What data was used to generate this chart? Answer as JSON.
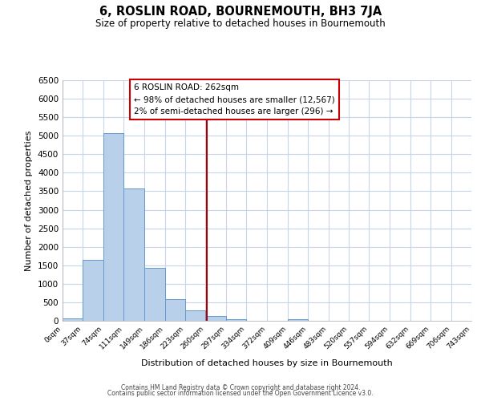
{
  "title": "6, ROSLIN ROAD, BOURNEMOUTH, BH3 7JA",
  "subtitle": "Size of property relative to detached houses in Bournemouth",
  "xlabel": "Distribution of detached houses by size in Bournemouth",
  "ylabel": "Number of detached properties",
  "bar_color": "#b8d0ea",
  "bar_edge_color": "#6699cc",
  "background_color": "#ffffff",
  "grid_color": "#c8d4e8",
  "bin_edges": [
    0,
    37,
    74,
    111,
    149,
    186,
    223,
    260,
    297,
    334,
    372,
    409,
    446,
    483,
    520,
    557,
    594,
    632,
    669,
    706,
    743
  ],
  "bin_labels": [
    "0sqm",
    "37sqm",
    "74sqm",
    "111sqm",
    "149sqm",
    "186sqm",
    "223sqm",
    "260sqm",
    "297sqm",
    "334sqm",
    "372sqm",
    "409sqm",
    "446sqm",
    "483sqm",
    "520sqm",
    "557sqm",
    "594sqm",
    "632sqm",
    "669sqm",
    "706sqm",
    "743sqm"
  ],
  "counts": [
    60,
    1640,
    5080,
    3580,
    1420,
    580,
    290,
    130,
    50,
    0,
    0,
    50,
    0,
    0,
    0,
    0,
    0,
    0,
    0,
    0
  ],
  "ylim": [
    0,
    6500
  ],
  "yticks": [
    0,
    500,
    1000,
    1500,
    2000,
    2500,
    3000,
    3500,
    4000,
    4500,
    5000,
    5500,
    6000,
    6500
  ],
  "property_value": 262,
  "vline_color": "#aa0000",
  "annotation_box_color": "#cc0000",
  "annotation_title": "6 ROSLIN ROAD: 262sqm",
  "annotation_line1": "← 98% of detached houses are smaller (12,567)",
  "annotation_line2": "2% of semi-detached houses are larger (296) →",
  "footer_line1": "Contains HM Land Registry data © Crown copyright and database right 2024.",
  "footer_line2": "Contains public sector information licensed under the Open Government Licence v3.0."
}
